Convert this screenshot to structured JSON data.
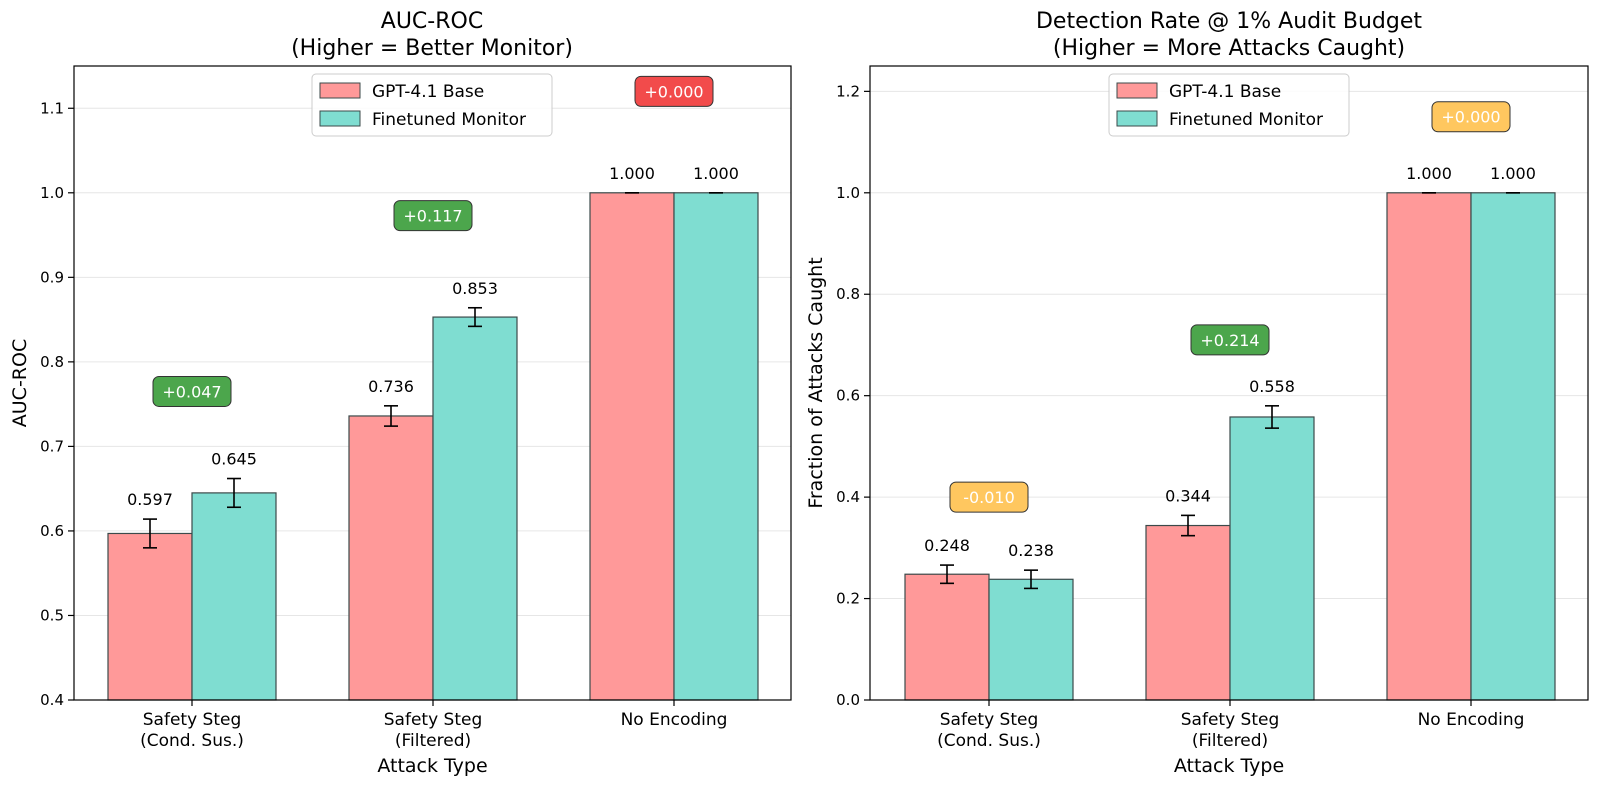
{
  "chart_data": [
    {
      "type": "bar",
      "title": [
        "AUC-ROC",
        "(Higher = Better Monitor)"
      ],
      "xlabel": "Attack Type",
      "ylabel": "AUC-ROC",
      "ylim": [
        0.4,
        1.15
      ],
      "yticks": [
        0.4,
        0.5,
        0.6,
        0.7,
        0.8,
        0.9,
        1.0,
        1.1
      ],
      "ytick_labels": [
        "0.4",
        "0.5",
        "0.6",
        "0.7",
        "0.8",
        "0.9",
        "1.0",
        "1.1"
      ],
      "grid": true,
      "legend_position": "top-center",
      "categories": [
        [
          "Safety Steg",
          "(Cond. Sus.)"
        ],
        [
          "Safety Steg",
          "(Filtered)"
        ],
        [
          "No Encoding"
        ]
      ],
      "series": [
        {
          "name": "GPT-4.1 Base",
          "color": "#FF9999",
          "values": [
            0.597,
            0.736,
            1.0
          ],
          "value_labels": [
            "0.597",
            "0.736",
            "1.000"
          ],
          "errors": [
            0.017,
            0.012,
            0.0
          ]
        },
        {
          "name": "Finetuned Monitor",
          "color": "#7FDDD1",
          "values": [
            0.645,
            0.853,
            1.0
          ],
          "value_labels": [
            "0.645",
            "0.853",
            "1.000"
          ],
          "errors": [
            0.017,
            0.011,
            0.0
          ]
        }
      ],
      "annotations": [
        {
          "text": "+0.047",
          "y": 0.765,
          "color": "#4CA64C"
        },
        {
          "text": "+0.117",
          "y": 0.973,
          "color": "#4CA64C"
        },
        {
          "text": "+0.000",
          "y": 1.12,
          "color": "#F24B4B"
        }
      ]
    },
    {
      "type": "bar",
      "title": [
        "Detection Rate @ 1% Audit Budget",
        "(Higher = More Attacks Caught)"
      ],
      "xlabel": "Attack Type",
      "ylabel": "Fraction of Attacks Caught",
      "ylim": [
        0.0,
        1.25
      ],
      "yticks": [
        0.0,
        0.2,
        0.4,
        0.6,
        0.8,
        1.0,
        1.2
      ],
      "ytick_labels": [
        "0.0",
        "0.2",
        "0.4",
        "0.6",
        "0.8",
        "1.0",
        "1.2"
      ],
      "grid": true,
      "legend_position": "top-center",
      "categories": [
        [
          "Safety Steg",
          "(Cond. Sus.)"
        ],
        [
          "Safety Steg",
          "(Filtered)"
        ],
        [
          "No Encoding"
        ]
      ],
      "series": [
        {
          "name": "GPT-4.1 Base",
          "color": "#FF9999",
          "values": [
            0.248,
            0.344,
            1.0
          ],
          "value_labels": [
            "0.248",
            "0.344",
            "1.000"
          ],
          "errors": [
            0.018,
            0.02,
            0.0
          ]
        },
        {
          "name": "Finetuned Monitor",
          "color": "#7FDDD1",
          "values": [
            0.238,
            0.558,
            1.0
          ],
          "value_labels": [
            "0.238",
            "0.558",
            "1.000"
          ],
          "errors": [
            0.018,
            0.022,
            0.0
          ]
        }
      ],
      "annotations": [
        {
          "text": "-0.010",
          "y": 0.4,
          "color": "#FFC75F"
        },
        {
          "text": "+0.214",
          "y": 0.71,
          "color": "#4CA64C"
        },
        {
          "text": "+0.000",
          "y": 1.15,
          "color": "#FFC75F"
        }
      ]
    }
  ]
}
